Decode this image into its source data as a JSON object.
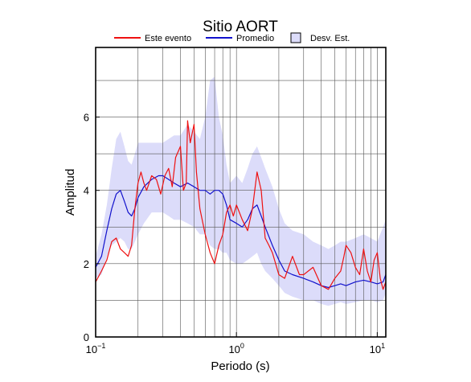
{
  "chart_data": {
    "type": "line",
    "title": "Sitio AORT",
    "xlabel": "Periodo (s)",
    "ylabel": "Amplitud",
    "xscale": "log",
    "xlim": [
      0.1,
      11.5
    ],
    "ylim": [
      0,
      7.9
    ],
    "grid": true,
    "legend_position": "top",
    "x_ticks": [
      {
        "value": 0.1,
        "base": "10",
        "exp": "−1"
      },
      {
        "value": 1,
        "label": "10",
        "sup": "0"
      },
      {
        "value": 10,
        "label": "10",
        "sup": "1"
      }
    ],
    "y_ticks": [
      0,
      2,
      4,
      6
    ],
    "legend": [
      {
        "label": "Este evento",
        "color": "#ee1111",
        "kind": "line"
      },
      {
        "label": "Promedio",
        "color": "#1111cc",
        "kind": "line"
      },
      {
        "label": "Desv. Est.",
        "color": "#dcdcfa",
        "kind": "box"
      }
    ],
    "series": [
      {
        "name": "Este evento",
        "color": "#ee1111",
        "x": [
          0.1,
          0.11,
          0.12,
          0.13,
          0.14,
          0.15,
          0.16,
          0.17,
          0.18,
          0.19,
          0.2,
          0.21,
          0.22,
          0.23,
          0.25,
          0.27,
          0.29,
          0.31,
          0.33,
          0.35,
          0.37,
          0.4,
          0.42,
          0.44,
          0.45,
          0.47,
          0.5,
          0.52,
          0.55,
          0.6,
          0.65,
          0.7,
          0.75,
          0.8,
          0.85,
          0.9,
          0.95,
          1.0,
          1.1,
          1.2,
          1.3,
          1.4,
          1.5,
          1.6,
          1.7,
          1.8,
          2.0,
          2.2,
          2.5,
          2.8,
          3.0,
          3.5,
          4.0,
          4.5,
          5.0,
          5.5,
          5.8,
          6.0,
          6.5,
          7.0,
          7.5,
          8.0,
          8.5,
          9.0,
          9.5,
          10.0,
          10.5,
          11.0,
          11.5
        ],
        "y": [
          1.5,
          1.8,
          2.1,
          2.6,
          2.7,
          2.4,
          2.3,
          2.2,
          2.5,
          3.5,
          4.2,
          4.5,
          4.2,
          4.0,
          4.4,
          4.3,
          3.9,
          4.4,
          4.6,
          4.1,
          4.9,
          5.2,
          4.0,
          4.2,
          5.9,
          5.3,
          5.8,
          4.5,
          3.5,
          2.8,
          2.3,
          2.0,
          2.5,
          2.8,
          3.4,
          3.6,
          3.3,
          3.6,
          3.2,
          2.9,
          3.5,
          4.5,
          4.0,
          2.7,
          2.5,
          2.3,
          1.7,
          1.6,
          2.2,
          1.7,
          1.7,
          1.9,
          1.4,
          1.3,
          1.6,
          1.8,
          2.2,
          2.5,
          2.3,
          1.9,
          1.7,
          2.4,
          1.8,
          1.5,
          2.1,
          2.3,
          1.6,
          1.3,
          1.5
        ]
      },
      {
        "name": "Promedio",
        "color": "#1111cc",
        "x": [
          0.1,
          0.11,
          0.12,
          0.13,
          0.14,
          0.15,
          0.16,
          0.17,
          0.18,
          0.19,
          0.2,
          0.22,
          0.25,
          0.28,
          0.3,
          0.33,
          0.36,
          0.4,
          0.45,
          0.5,
          0.55,
          0.6,
          0.65,
          0.7,
          0.75,
          0.8,
          0.85,
          0.9,
          1.0,
          1.1,
          1.2,
          1.3,
          1.4,
          1.5,
          1.6,
          1.8,
          2.0,
          2.2,
          2.5,
          3.0,
          3.5,
          4.0,
          4.5,
          5.0,
          5.5,
          6.0,
          7.0,
          8.0,
          9.0,
          10.0,
          11.0,
          11.5
        ],
        "y": [
          1.9,
          2.2,
          2.9,
          3.5,
          3.9,
          4.0,
          3.7,
          3.4,
          3.3,
          3.5,
          3.8,
          4.1,
          4.3,
          4.4,
          4.4,
          4.3,
          4.2,
          4.1,
          4.2,
          4.1,
          4.0,
          4.0,
          3.9,
          4.0,
          4.0,
          3.9,
          3.6,
          3.2,
          3.1,
          3.0,
          3.2,
          3.5,
          3.6,
          3.3,
          3.0,
          2.5,
          2.1,
          1.8,
          1.7,
          1.6,
          1.5,
          1.4,
          1.35,
          1.4,
          1.45,
          1.4,
          1.5,
          1.55,
          1.5,
          1.45,
          1.5,
          1.7
        ]
      }
    ],
    "std_band": {
      "name": "Desv. Est.",
      "color": "#dcdcfa",
      "x": [
        0.1,
        0.11,
        0.12,
        0.13,
        0.14,
        0.15,
        0.16,
        0.17,
        0.18,
        0.19,
        0.2,
        0.22,
        0.25,
        0.28,
        0.3,
        0.33,
        0.36,
        0.4,
        0.45,
        0.5,
        0.55,
        0.6,
        0.65,
        0.7,
        0.75,
        0.8,
        0.85,
        0.9,
        1.0,
        1.1,
        1.2,
        1.3,
        1.4,
        1.5,
        1.6,
        1.8,
        2.0,
        2.2,
        2.5,
        3.0,
        3.5,
        4.0,
        4.5,
        5.0,
        5.5,
        6.0,
        7.0,
        8.0,
        9.0,
        10.0,
        11.0,
        11.5
      ],
      "upper": [
        2.2,
        2.8,
        3.6,
        4.6,
        5.4,
        5.6,
        5.2,
        4.8,
        4.7,
        5.0,
        5.3,
        5.3,
        5.3,
        5.3,
        5.3,
        5.4,
        5.5,
        5.5,
        5.8,
        5.6,
        5.4,
        6.0,
        7.0,
        7.1,
        6.0,
        5.5,
        4.7,
        4.2,
        4.4,
        4.2,
        4.6,
        5.0,
        5.2,
        4.9,
        4.6,
        4.1,
        3.5,
        3.1,
        2.9,
        2.8,
        2.6,
        2.5,
        2.4,
        2.5,
        2.6,
        2.6,
        2.7,
        2.8,
        2.7,
        2.6,
        3.0,
        3.2
      ],
      "lower": [
        1.6,
        1.7,
        2.2,
        2.5,
        2.6,
        2.7,
        2.6,
        2.4,
        2.4,
        2.6,
        2.8,
        3.1,
        3.4,
        3.4,
        3.4,
        3.3,
        3.2,
        3.2,
        3.1,
        3.0,
        2.8,
        2.8,
        2.5,
        2.4,
        2.4,
        2.3,
        2.3,
        2.1,
        2.0,
        2.0,
        2.1,
        2.2,
        2.3,
        2.0,
        1.8,
        1.6,
        1.4,
        1.2,
        1.1,
        1.0,
        1.0,
        0.9,
        0.85,
        0.9,
        0.95,
        0.9,
        0.95,
        1.0,
        1.0,
        0.95,
        1.0,
        1.2
      ]
    }
  }
}
